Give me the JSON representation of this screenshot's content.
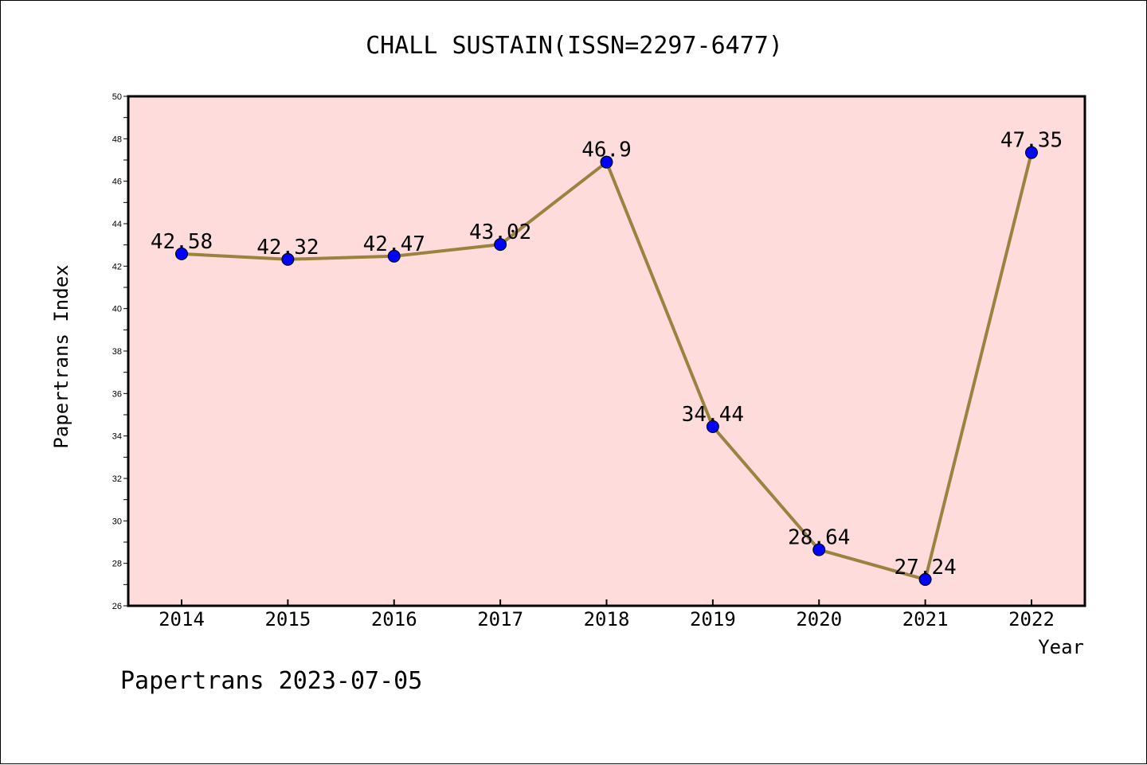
{
  "title": "CHALL SUSTAIN(ISSN=2297-6477)",
  "footer": "Papertrans 2023-07-05",
  "colors": {
    "plot_background": "#ffdcdc",
    "line": "#9a8240",
    "marker": "#0000ff",
    "axis": "#000000"
  },
  "chart_data": {
    "type": "line",
    "title": "CHALL SUSTAIN(ISSN=2297-6477)",
    "xlabel": "Year",
    "ylabel": "Papertrans Index",
    "ylim": [
      26,
      50
    ],
    "yticks": [
      26,
      28,
      30,
      32,
      34,
      36,
      38,
      40,
      42,
      44,
      46,
      48,
      50
    ],
    "grid": false,
    "categories": [
      "2014",
      "2015",
      "2016",
      "2017",
      "2018",
      "2019",
      "2020",
      "2021",
      "2022"
    ],
    "series": [
      {
        "values": [
          42.58,
          42.32,
          42.47,
          43.02,
          46.9,
          34.44,
          28.64,
          27.24,
          47.35
        ],
        "labels": [
          "42.58",
          "42.32",
          "42.47",
          "43.02",
          "46.9",
          "34.44",
          "28.64",
          "27.24",
          "47.35"
        ]
      }
    ]
  }
}
